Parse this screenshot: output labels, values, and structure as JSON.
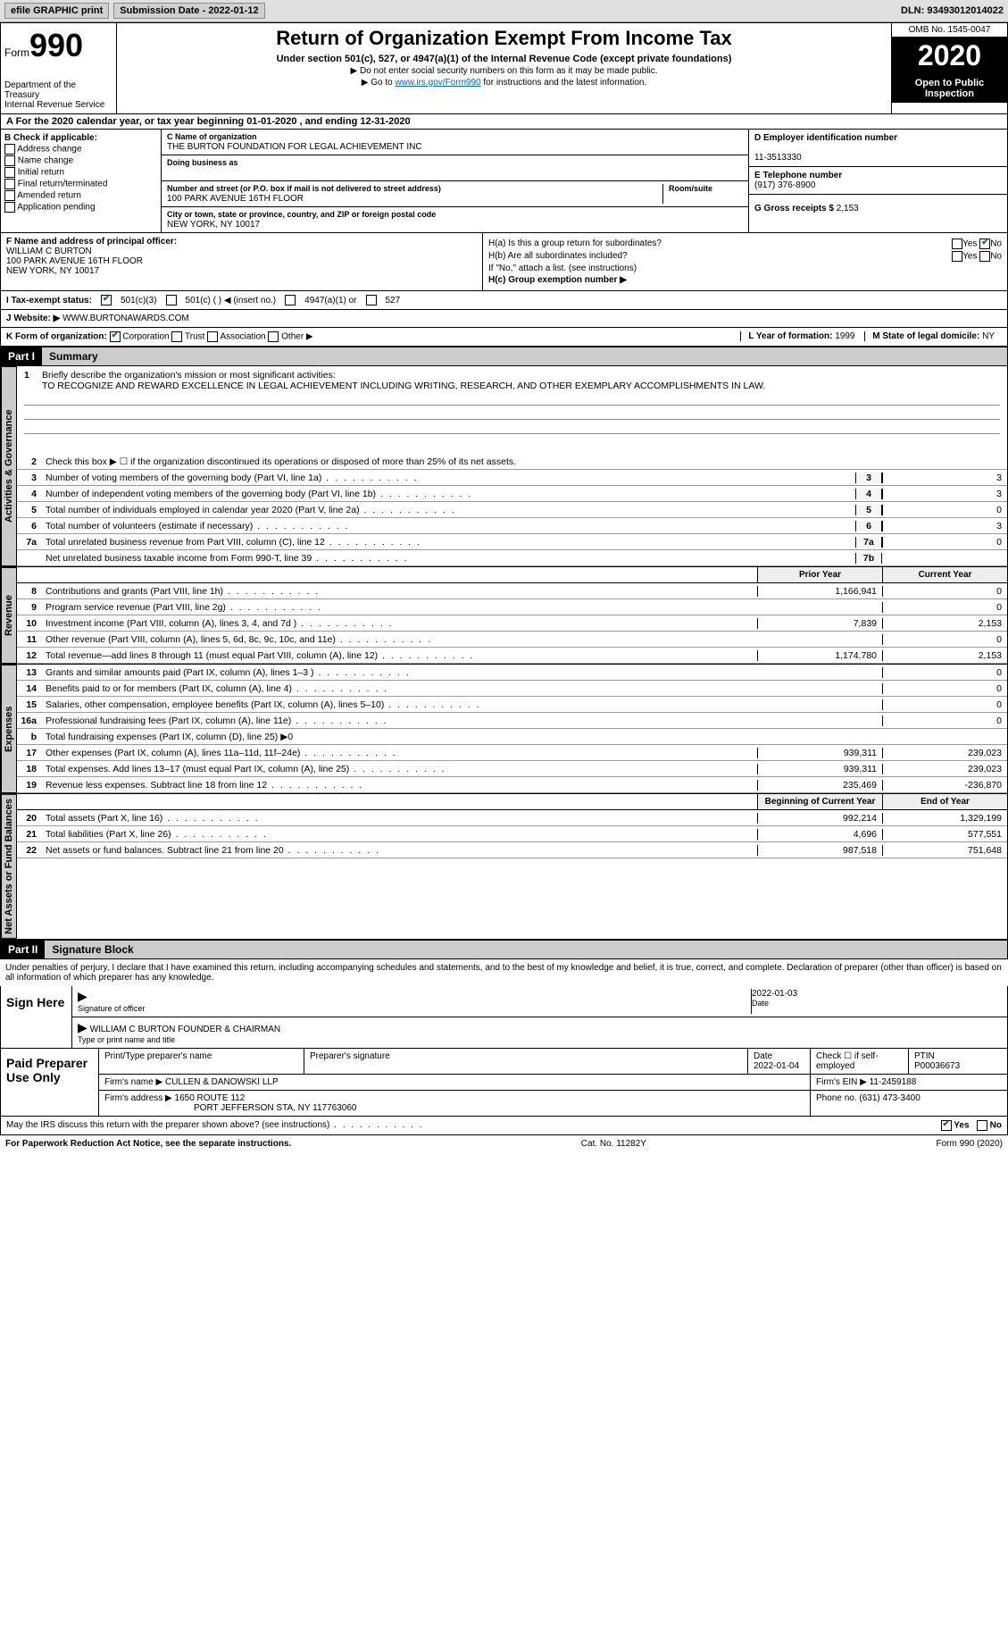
{
  "topbar": {
    "efile": "efile GRAPHIC print",
    "submission_label": "Submission Date - 2022-01-12",
    "dln": "DLN: 93493012014022"
  },
  "header": {
    "form_label": "Form",
    "form_number": "990",
    "dept": "Department of the Treasury\nInternal Revenue Service",
    "title": "Return of Organization Exempt From Income Tax",
    "subtitle": "Under section 501(c), 527, or 4947(a)(1) of the Internal Revenue Code (except private foundations)",
    "note1": "▶ Do not enter social security numbers on this form as it may be made public.",
    "note2_pre": "▶ Go to ",
    "note2_link": "www.irs.gov/Form990",
    "note2_post": " for instructions and the latest information.",
    "omb": "OMB No. 1545-0047",
    "year": "2020",
    "inspection": "Open to Public Inspection"
  },
  "period": "A For the 2020 calendar year, or tax year beginning 01-01-2020   , and ending 12-31-2020",
  "section_b": {
    "label": "B Check if applicable:",
    "opts": [
      "Address change",
      "Name change",
      "Initial return",
      "Final return/terminated",
      "Amended return",
      "Application pending"
    ]
  },
  "section_c": {
    "name_label": "C Name of organization",
    "name": "THE BURTON FOUNDATION FOR LEGAL ACHIEVEMENT INC",
    "dba_label": "Doing business as",
    "dba": "",
    "addr_label": "Number and street (or P.O. box if mail is not delivered to street address)",
    "room_label": "Room/suite",
    "addr": "100 PARK AVENUE 16TH FLOOR",
    "city_label": "City or town, state or province, country, and ZIP or foreign postal code",
    "city": "NEW YORK, NY  10017"
  },
  "section_d": {
    "ein_label": "D Employer identification number",
    "ein": "11-3513330",
    "phone_label": "E Telephone number",
    "phone": "(917) 376-8900",
    "gross_label": "G Gross receipts $",
    "gross": "2,153"
  },
  "section_f": {
    "label": "F  Name and address of principal officer:",
    "name": "WILLIAM C BURTON",
    "addr1": "100 PARK AVENUE 16TH FLOOR",
    "addr2": "NEW YORK, NY  10017"
  },
  "section_h": {
    "a_label": "H(a)  Is this a group return for subordinates?",
    "a_yes": "Yes",
    "a_no": "No",
    "b_label": "H(b)  Are all subordinates included?",
    "b_yes": "Yes",
    "b_no": "No",
    "b_note": "If \"No,\" attach a list. (see instructions)",
    "c_label": "H(c)  Group exemption number ▶"
  },
  "section_i": {
    "label": "I  Tax-exempt status:",
    "opts": [
      "501(c)(3)",
      "501(c) (  ) ◀ (insert no.)",
      "4947(a)(1) or",
      "527"
    ]
  },
  "section_j": {
    "label": "J  Website: ▶",
    "value": "WWW.BURTONAWARDS.COM"
  },
  "section_k": {
    "label": "K Form of organization:",
    "opts": [
      "Corporation",
      "Trust",
      "Association",
      "Other ▶"
    ],
    "l_label": "L Year of formation:",
    "l_val": "1999",
    "m_label": "M State of legal domicile:",
    "m_val": "NY"
  },
  "part1": {
    "hdr": "Part I",
    "title": "Summary",
    "brief_num": "1",
    "brief_label": "Briefly describe the organization's mission or most significant activities:",
    "brief_text": "TO RECOGNIZE AND REWARD EXCELLENCE IN LEGAL ACHIEVEMENT INCLUDING WRITING, RESEARCH, AND OTHER EXEMPLARY ACCOMPLISHMENTS IN LAW.",
    "line2": "Check this box ▶ ☐  if the organization discontinued its operations or disposed of more than 25% of its net assets.",
    "col_prior": "Prior Year",
    "col_current": "Current Year",
    "col_begin": "Beginning of Current Year",
    "col_end": "End of Year"
  },
  "vtabs": {
    "gov": "Activities & Governance",
    "rev": "Revenue",
    "exp": "Expenses",
    "net": "Net Assets or Fund Balances"
  },
  "lines": {
    "l3": {
      "n": "3",
      "d": "Number of voting members of the governing body (Part VI, line 1a)",
      "box": "3",
      "v": "3"
    },
    "l4": {
      "n": "4",
      "d": "Number of independent voting members of the governing body (Part VI, line 1b)",
      "box": "4",
      "v": "3"
    },
    "l5": {
      "n": "5",
      "d": "Total number of individuals employed in calendar year 2020 (Part V, line 2a)",
      "box": "5",
      "v": "0"
    },
    "l6": {
      "n": "6",
      "d": "Total number of volunteers (estimate if necessary)",
      "box": "6",
      "v": "3"
    },
    "l7a": {
      "n": "7a",
      "d": "Total unrelated business revenue from Part VIII, column (C), line 12",
      "box": "7a",
      "v": "0"
    },
    "l7b": {
      "n": "",
      "d": "Net unrelated business taxable income from Form 990-T, line 39",
      "box": "7b",
      "v": ""
    },
    "l8": {
      "n": "8",
      "d": "Contributions and grants (Part VIII, line 1h)",
      "p": "1,166,941",
      "c": "0"
    },
    "l9": {
      "n": "9",
      "d": "Program service revenue (Part VIII, line 2g)",
      "p": "",
      "c": "0"
    },
    "l10": {
      "n": "10",
      "d": "Investment income (Part VIII, column (A), lines 3, 4, and 7d )",
      "p": "7,839",
      "c": "2,153"
    },
    "l11": {
      "n": "11",
      "d": "Other revenue (Part VIII, column (A), lines 5, 6d, 8c, 9c, 10c, and 11e)",
      "p": "",
      "c": "0"
    },
    "l12": {
      "n": "12",
      "d": "Total revenue—add lines 8 through 11 (must equal Part VIII, column (A), line 12)",
      "p": "1,174,780",
      "c": "2,153"
    },
    "l13": {
      "n": "13",
      "d": "Grants and similar amounts paid (Part IX, column (A), lines 1–3 )",
      "p": "",
      "c": "0"
    },
    "l14": {
      "n": "14",
      "d": "Benefits paid to or for members (Part IX, column (A), line 4)",
      "p": "",
      "c": "0"
    },
    "l15": {
      "n": "15",
      "d": "Salaries, other compensation, employee benefits (Part IX, column (A), lines 5–10)",
      "p": "",
      "c": "0"
    },
    "l16a": {
      "n": "16a",
      "d": "Professional fundraising fees (Part IX, column (A), line 11e)",
      "p": "",
      "c": "0"
    },
    "l16b": {
      "n": "b",
      "d": "Total fundraising expenses (Part IX, column (D), line 25) ▶0"
    },
    "l17": {
      "n": "17",
      "d": "Other expenses (Part IX, column (A), lines 11a–11d, 11f–24e)",
      "p": "939,311",
      "c": "239,023"
    },
    "l18": {
      "n": "18",
      "d": "Total expenses. Add lines 13–17 (must equal Part IX, column (A), line 25)",
      "p": "939,311",
      "c": "239,023"
    },
    "l19": {
      "n": "19",
      "d": "Revenue less expenses. Subtract line 18 from line 12",
      "p": "235,469",
      "c": "-236,870"
    },
    "l20": {
      "n": "20",
      "d": "Total assets (Part X, line 16)",
      "p": "992,214",
      "c": "1,329,199"
    },
    "l21": {
      "n": "21",
      "d": "Total liabilities (Part X, line 26)",
      "p": "4,696",
      "c": "577,551"
    },
    "l22": {
      "n": "22",
      "d": "Net assets or fund balances. Subtract line 21 from line 20",
      "p": "987,518",
      "c": "751,648"
    }
  },
  "part2": {
    "hdr": "Part II",
    "title": "Signature Block",
    "decl": "Under penalties of perjury, I declare that I have examined this return, including accompanying schedules and statements, and to the best of my knowledge and belief, it is true, correct, and complete. Declaration of preparer (other than officer) is based on all information of which preparer has any knowledge."
  },
  "sign": {
    "here": "Sign Here",
    "sig_label": "Signature of officer",
    "date_label": "Date",
    "date": "2022-01-03",
    "name": "WILLIAM C BURTON  FOUNDER & CHAIRMAN",
    "name_label": "Type or print name and title"
  },
  "prep": {
    "title": "Paid Preparer Use Only",
    "h1": "Print/Type preparer's name",
    "h2": "Preparer's signature",
    "h3": "Date",
    "h4": "Check ☐ if self-employed",
    "h5": "PTIN",
    "date": "2022-01-04",
    "ptin": "P00036673",
    "firm_label": "Firm's name    ▶",
    "firm": "CULLEN & DANOWSKI LLP",
    "ein_label": "Firm's EIN ▶",
    "ein": "11-2459188",
    "addr_label": "Firm's address ▶",
    "addr1": "1650 ROUTE 112",
    "addr2": "PORT JEFFERSON STA, NY  117763060",
    "phone_label": "Phone no.",
    "phone": "(631) 473-3400"
  },
  "may": {
    "text": "May the IRS discuss this return with the preparer shown above? (see instructions)",
    "yes": "Yes",
    "no": "No"
  },
  "footer": {
    "left": "For Paperwork Reduction Act Notice, see the separate instructions.",
    "mid": "Cat. No. 11282Y",
    "right": "Form 990 (2020)"
  }
}
